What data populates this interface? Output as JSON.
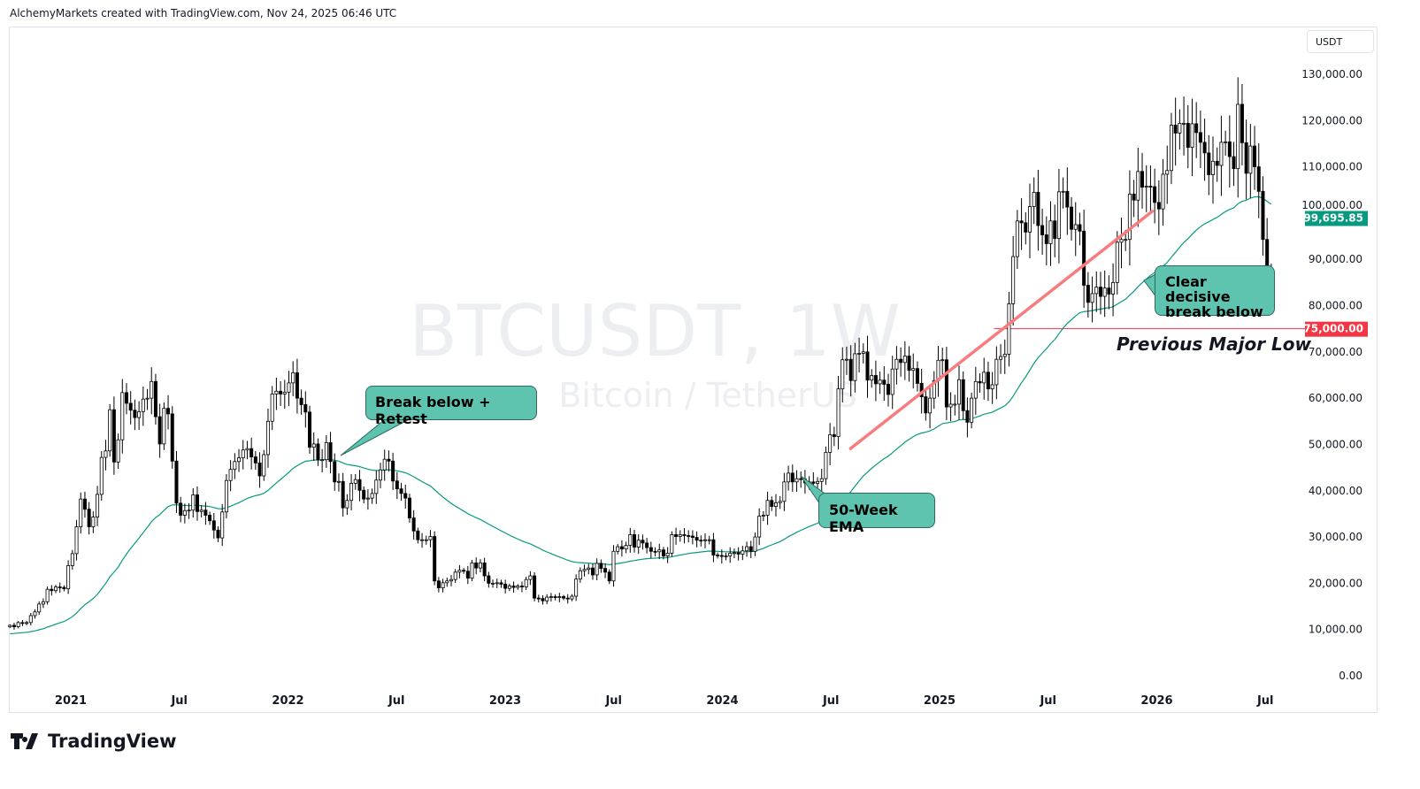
{
  "header": {
    "attribution": "AlchemyMarkets created with TradingView.com, Nov 24, 2025 06:46 UTC"
  },
  "watermark": {
    "symbol": "BTCUSDT, 1W",
    "name": "Bitcoin / TetherUS"
  },
  "footer": {
    "logo": "TradingView"
  },
  "chart_data": {
    "type": "candlestick",
    "title": "BTCUSDT, 1W",
    "ylabel": "USDT",
    "ylim": [
      0,
      130000
    ],
    "y_ticks": [
      "130,000.00",
      "120,000.00",
      "110,000.00",
      "100,000.00",
      "90,000.00",
      "80,000.00",
      "70,000.00",
      "60,000.00",
      "50,000.00",
      "40,000.00",
      "30,000.00",
      "20,000.00",
      "10,000.00",
      "0.00"
    ],
    "y_tick_values": [
      130000,
      120000,
      110000,
      100000,
      90000,
      80000,
      70000,
      60000,
      50000,
      40000,
      30000,
      20000,
      10000,
      0
    ],
    "x_ticks": [
      {
        "label": "2021",
        "t": 2021.0
      },
      {
        "label": "Jul",
        "t": 2021.5
      },
      {
        "label": "2022",
        "t": 2022.0
      },
      {
        "label": "Jul",
        "t": 2022.5
      },
      {
        "label": "2023",
        "t": 2023.0
      },
      {
        "label": "Jul",
        "t": 2023.5
      },
      {
        "label": "2024",
        "t": 2024.0
      },
      {
        "label": "Jul",
        "t": 2024.5
      },
      {
        "label": "2025",
        "t": 2025.0
      },
      {
        "label": "Jul",
        "t": 2025.5
      },
      {
        "label": "2026",
        "t": 2026.0
      },
      {
        "label": "Jul",
        "t": 2026.5
      }
    ],
    "start_t": 2020.72,
    "interval": "1W",
    "weekly_close_k": [
      10.9,
      10.6,
      11.5,
      11.4,
      11.5,
      13.0,
      13.8,
      15.5,
      16.0,
      18.7,
      18.4,
      19.2,
      19.1,
      18.8,
      23.8,
      26.4,
      32.2,
      38.2,
      36.0,
      32.2,
      34.3,
      39.2,
      47.2,
      48.6,
      57.5,
      46.2,
      51.0,
      61.2,
      58.9,
      57.4,
      55.8,
      57.1,
      59.8,
      60.0,
      63.6,
      56.0,
      50.1,
      57.8,
      56.6,
      46.4,
      37.3,
      34.7,
      35.7,
      35.8,
      39.1,
      35.5,
      35.8,
      34.7,
      33.5,
      31.5,
      29.8,
      35.4,
      42.2,
      44.6,
      46.3,
      47.1,
      48.8,
      49.1,
      47.3,
      46.0,
      43.2,
      47.8,
      55.0,
      60.9,
      61.5,
      60.9,
      61.3,
      63.3,
      65.5,
      60.0,
      58.6,
      57.0,
      49.4,
      50.1,
      46.7,
      46.7,
      50.4,
      46.3,
      41.9,
      42.0,
      36.3,
      37.9,
      41.6,
      42.4,
      40.1,
      38.2,
      38.4,
      39.4,
      42.3,
      44.5,
      46.8,
      46.4,
      42.1,
      40.4,
      39.4,
      38.4,
      34.1,
      31.3,
      29.4,
      29.4,
      29.4,
      30.1,
      20.5,
      19.0,
      20.1,
      20.5,
      20.8,
      22.4,
      22.8,
      22.6,
      21.1,
      24.4,
      23.3,
      24.4,
      21.6,
      20.0,
      20.0,
      20.1,
      19.8,
      18.9,
      19.4,
      19.1,
      19.4,
      19.2,
      20.8,
      21.6,
      16.8,
      16.7,
      16.2,
      17.0,
      17.1,
      16.9,
      17.1,
      16.8,
      16.6,
      17.2,
      20.9,
      22.7,
      23.0,
      23.3,
      21.8,
      24.3,
      23.2,
      22.4,
      20.5,
      26.9,
      27.9,
      27.4,
      28.2,
      30.5,
      27.8,
      29.3,
      28.7,
      27.7,
      26.9,
      26.8,
      27.2,
      25.9,
      26.5,
      30.5,
      30.1,
      30.5,
      30.3,
      30.2,
      29.9,
      29.3,
      29.2,
      29.4,
      29.4,
      26.1,
      26.0,
      25.8,
      25.9,
      26.5,
      26.6,
      26.3,
      27.0,
      27.9,
      26.9,
      30.0,
      34.5,
      34.7,
      37.9,
      36.6,
      37.4,
      37.7,
      41.9,
      43.8,
      41.9,
      42.6,
      42.5,
      41.7,
      41.9,
      41.6,
      42.0,
      42.6,
      48.3,
      52.1,
      51.7,
      62.0,
      68.3,
      68.4,
      63.8,
      69.6,
      69.7,
      70.0,
      63.9,
      64.9,
      63.1,
      63.9,
      63.0,
      60.8,
      66.3,
      68.4,
      67.7,
      69.1,
      66.0,
      66.4,
      63.2,
      60.3,
      56.8,
      60.0,
      63.8,
      68.2,
      68.3,
      58.1,
      58.7,
      58.7,
      64.0,
      57.3,
      54.8,
      60.0,
      63.6,
      63.3,
      65.6,
      62.0,
      62.9,
      68.4,
      69.0,
      69.5,
      80.4,
      90.6,
      98.3,
      97.9,
      95.9,
      101.4,
      104.5,
      97.3,
      95.3,
      93.4,
      98.3,
      94.5,
      104.6,
      104.7,
      101.3,
      96.5,
      97.5,
      96.1,
      84.4,
      80.7,
      82.6,
      84.0,
      82.0,
      83.8,
      82.5,
      85.0,
      93.7,
      94.3,
      94.3,
      104.1,
      102.8,
      109.0,
      105.6,
      105.8,
      105.7,
      102.3,
      100.9,
      108.4,
      109.2,
      119.0,
      117.3,
      119.4,
      119.4,
      114.2,
      119.3,
      117.4,
      115.3,
      113.0,
      108.3,
      111.2,
      110.3,
      115.3,
      115.4,
      112.2,
      109.6,
      123.5,
      115.2,
      108.6,
      114.5,
      110.0,
      104.7,
      94.3,
      86.5,
      87.0
    ],
    "ema": {
      "name": "50-Week EMA",
      "period": 50,
      "seed_k": 9.0,
      "last_value_label": "99,695.85",
      "color": "#089981"
    },
    "trendline": {
      "from": {
        "t": 2024.59,
        "v": 49100
      },
      "to": {
        "t": 2025.98,
        "v": 100400
      },
      "color": "#f77c80"
    },
    "horizontal_level": {
      "value": 75000,
      "label": "75,000.00",
      "from_t": 2025.25,
      "color": "#f23645"
    },
    "annotations": [
      {
        "text": "Break below + Retest"
      },
      {
        "text": "50-Week EMA"
      },
      {
        "text": "Clear decisive break below"
      },
      {
        "text": "Previous Major Low"
      }
    ]
  }
}
